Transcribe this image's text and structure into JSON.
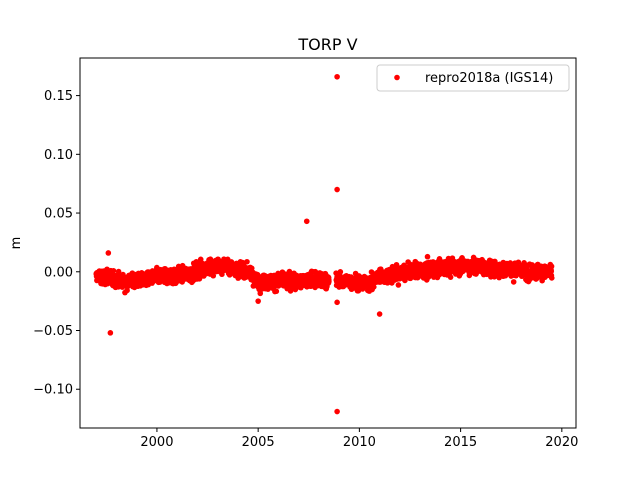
{
  "chart_data": {
    "type": "scatter",
    "title": "TORP V",
    "xlabel": "",
    "ylabel": "m",
    "xlim": [
      1996.2,
      2020.7
    ],
    "ylim": [
      -0.133,
      0.182
    ],
    "xticks": [
      2000,
      2005,
      2010,
      2015,
      2020
    ],
    "yticks": [
      -0.1,
      -0.05,
      0.0,
      0.05,
      0.1,
      0.15
    ],
    "xtick_labels": [
      "2000",
      "2005",
      "2010",
      "2015",
      "2020"
    ],
    "ytick_labels": [
      "−0.10",
      "−0.05",
      "0.00",
      "0.05",
      "0.10",
      "0.15"
    ],
    "grid": false,
    "legend_position": "top-right",
    "series": [
      {
        "name": "repro2018a (IGS14)",
        "color": "#ff0000",
        "marker": "circle",
        "x_range": [
          1997.0,
          2019.5
        ],
        "trend": {
          "x": [
            1997.0,
            1998.5,
            2000.0,
            2001.5,
            2002.5,
            2003.5,
            2004.5,
            2005.0,
            2006.5,
            2008.0,
            2009.5,
            2010.5,
            2011.0,
            2012.5,
            2014.0,
            2015.5,
            2016.5,
            2018.0,
            2019.5
          ],
          "y": [
            -0.004,
            -0.008,
            -0.004,
            -0.002,
            0.004,
            0.005,
            0.001,
            -0.008,
            -0.008,
            -0.007,
            -0.008,
            -0.01,
            -0.004,
            0.0,
            0.003,
            0.005,
            0.003,
            0.001,
            -0.001
          ]
        },
        "outliers": {
          "x": [
            1997.7,
            2007.4,
            2008.9,
            2008.9,
            2008.9,
            2011.0,
            2008.9,
            2005.0,
            1997.6
          ],
          "y": [
            -0.052,
            0.043,
            0.07,
            0.166,
            -0.119,
            -0.036,
            -0.026,
            -0.025,
            0.016
          ]
        }
      }
    ]
  }
}
